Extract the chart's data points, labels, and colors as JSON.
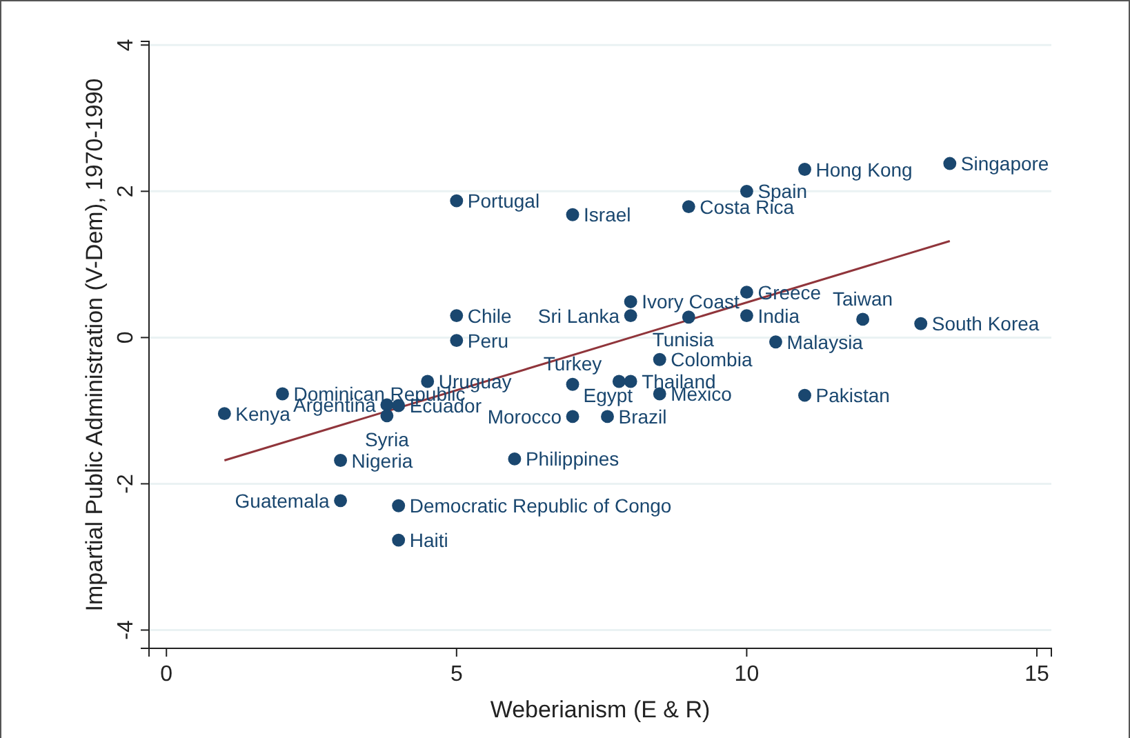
{
  "chart_data": {
    "type": "scatter",
    "xlabel": "Weberianism (E & R)",
    "ylabel": "Impartial Public Administration (V-Dem), 1970-1990",
    "xlim": [
      -0.3,
      15.25
    ],
    "ylim": [
      -4.25,
      4.05
    ],
    "xticks": [
      0,
      5,
      10,
      15
    ],
    "yticks": [
      -4,
      -2,
      0,
      2,
      4
    ],
    "grid": "y",
    "series": [
      {
        "marker": "circle",
        "color": "#1a476f",
        "x": [
          1,
          2,
          3.8,
          4,
          3.8,
          4.5,
          3,
          3,
          4,
          4,
          6,
          7,
          7,
          7.6,
          7.8,
          8,
          8.5,
          8.5,
          9,
          8,
          8,
          10,
          10,
          10.5,
          12,
          13,
          11,
          11,
          13.5,
          10,
          9,
          5,
          7,
          5,
          5
        ],
        "values": [
          -1.04,
          -0.77,
          -0.92,
          -0.93,
          -1.07,
          -0.6,
          -1.68,
          -2.23,
          -2.3,
          -2.77,
          -1.66,
          -0.64,
          -1.08,
          -1.08,
          -0.6,
          -0.6,
          -0.77,
          -0.3,
          0.28,
          0.3,
          0.49,
          0.62,
          0.3,
          -0.06,
          0.25,
          0.19,
          -0.79,
          2.3,
          2.38,
          2,
          1.79,
          1.87,
          1.68,
          0.3,
          -0.04
        ]
      },
      {
        "type": "line",
        "color": "#90353b",
        "x": [
          1,
          13.5
        ],
        "values": [
          -1.68,
          1.32
        ]
      }
    ],
    "annotations": [
      {
        "text": "Kenya",
        "x": 1,
        "y": -1.04
      },
      {
        "text": "Dominican Republic",
        "x": 2,
        "y": -0.77
      },
      {
        "text": "Argentina",
        "x": 3.8,
        "y": -0.92
      },
      {
        "text": "Ecuador",
        "x": 4,
        "y": -0.93
      },
      {
        "text": "Syria",
        "x": 3.8,
        "y": -1.07
      },
      {
        "text": "Uruguay",
        "x": 4.5,
        "y": -0.6
      },
      {
        "text": "Nigeria",
        "x": 3,
        "y": -1.68
      },
      {
        "text": "Guatemala",
        "x": 3,
        "y": -2.23
      },
      {
        "text": "Democratic Republic of Congo",
        "x": 4,
        "y": -2.3
      },
      {
        "text": "Haiti",
        "x": 4,
        "y": -2.77
      },
      {
        "text": "Philippines",
        "x": 6,
        "y": -1.66
      },
      {
        "text": "Turkey",
        "x": 7,
        "y": -0.64
      },
      {
        "text": "Morocco",
        "x": 7,
        "y": -1.08
      },
      {
        "text": "Brazil",
        "x": 7.6,
        "y": -1.08
      },
      {
        "text": "Egypt",
        "x": 7.8,
        "y": -0.6
      },
      {
        "text": "Thailand",
        "x": 8,
        "y": -0.6
      },
      {
        "text": "Mexico",
        "x": 8.5,
        "y": -0.77
      },
      {
        "text": "Colombia",
        "x": 8.5,
        "y": -0.3
      },
      {
        "text": "Tunisia",
        "x": 9,
        "y": 0.28
      },
      {
        "text": "Sri Lanka",
        "x": 8,
        "y": 0.3
      },
      {
        "text": "Ivory Coast",
        "x": 8,
        "y": 0.49
      },
      {
        "text": "Greece",
        "x": 10,
        "y": 0.62
      },
      {
        "text": "India",
        "x": 10,
        "y": 0.3
      },
      {
        "text": "Malaysia",
        "x": 10.5,
        "y": -0.06
      },
      {
        "text": "Taiwan",
        "x": 12,
        "y": 0.25
      },
      {
        "text": "South Korea",
        "x": 13,
        "y": 0.19
      },
      {
        "text": "Pakistan",
        "x": 11,
        "y": -0.79
      },
      {
        "text": "Hong Kong",
        "x": 11,
        "y": 2.3
      },
      {
        "text": "Singapore",
        "x": 13.5,
        "y": 2.38
      },
      {
        "text": "Spain",
        "x": 10,
        "y": 2
      },
      {
        "text": "Costa Rica",
        "x": 9,
        "y": 1.79
      },
      {
        "text": "Portugal",
        "x": 5,
        "y": 1.87
      },
      {
        "text": "Israel",
        "x": 7,
        "y": 1.68
      },
      {
        "text": "Chile",
        "x": 5,
        "y": 0.3
      },
      {
        "text": "Peru",
        "x": 5,
        "y": -0.04
      }
    ]
  }
}
